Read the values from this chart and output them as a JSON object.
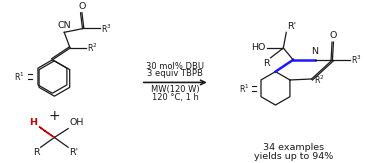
{
  "background_color": "#ffffff",
  "figsize": [
    3.78,
    1.63
  ],
  "dpi": 100,
  "reaction_conditions_above": [
    "30 mol% DBU",
    "3 equiv TBPB"
  ],
  "reaction_conditions_below": [
    "MW(120 W)",
    "120 °C, 1 h"
  ],
  "product_info": [
    "34 examples",
    "yields up to 94%"
  ],
  "blue_bond_color": "#1a1aff",
  "red_H_color": "#cc0000",
  "black_color": "#1a1a1a"
}
